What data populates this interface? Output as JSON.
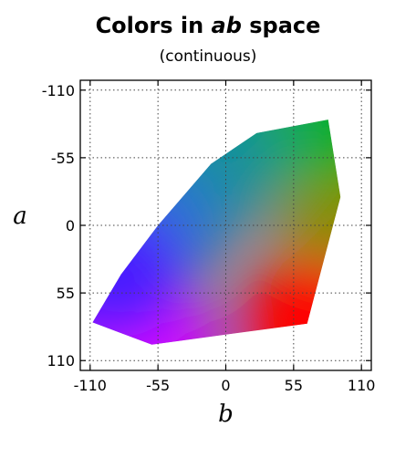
{
  "chart_data": {
    "type": "scatter",
    "title_main": "Colors in ",
    "title_italic": "ab",
    "title_tail": " space",
    "subtitle": "(continuous)",
    "xlabel": "b",
    "ylabel": "a",
    "xlim": [
      -118,
      118
    ],
    "ylim": [
      -118,
      118
    ],
    "y_inverted": true,
    "grid": true,
    "xticks": [
      -110,
      -55,
      0,
      55,
      110
    ],
    "yticks": [
      -110,
      -55,
      0,
      55,
      110
    ],
    "xtick_labels": [
      "-110",
      "-55",
      "0",
      "55",
      "110"
    ],
    "ytick_labels": [
      "-110",
      "-55",
      "0",
      "55",
      "110"
    ],
    "gamut_outline": [
      {
        "b": -108,
        "a": 79
      },
      {
        "b": -60,
        "a": 97
      },
      {
        "b": 66,
        "a": 80
      },
      {
        "b": 93,
        "a": -23
      },
      {
        "b": 83,
        "a": -86
      },
      {
        "b": 25,
        "a": -75
      },
      {
        "b": -12,
        "a": -50
      },
      {
        "b": -55,
        "a": 0
      },
      {
        "b": -85,
        "a": 40
      }
    ],
    "color_samples": [
      {
        "b": -108,
        "a": 79,
        "color": "#8a00ff"
      },
      {
        "b": -60,
        "a": 97,
        "color": "#d400ff"
      },
      {
        "b": 66,
        "a": 80,
        "color": "#ff0000"
      },
      {
        "b": 93,
        "a": -23,
        "color": "#8c8c00"
      },
      {
        "b": 83,
        "a": -86,
        "color": "#00b000"
      },
      {
        "b": 25,
        "a": -75,
        "color": "#1aa85a"
      },
      {
        "b": -12,
        "a": -50,
        "color": "#12909c"
      },
      {
        "b": -55,
        "a": 0,
        "color": "#2a74d0"
      },
      {
        "b": -85,
        "a": 40,
        "color": "#4a1dff"
      }
    ]
  }
}
